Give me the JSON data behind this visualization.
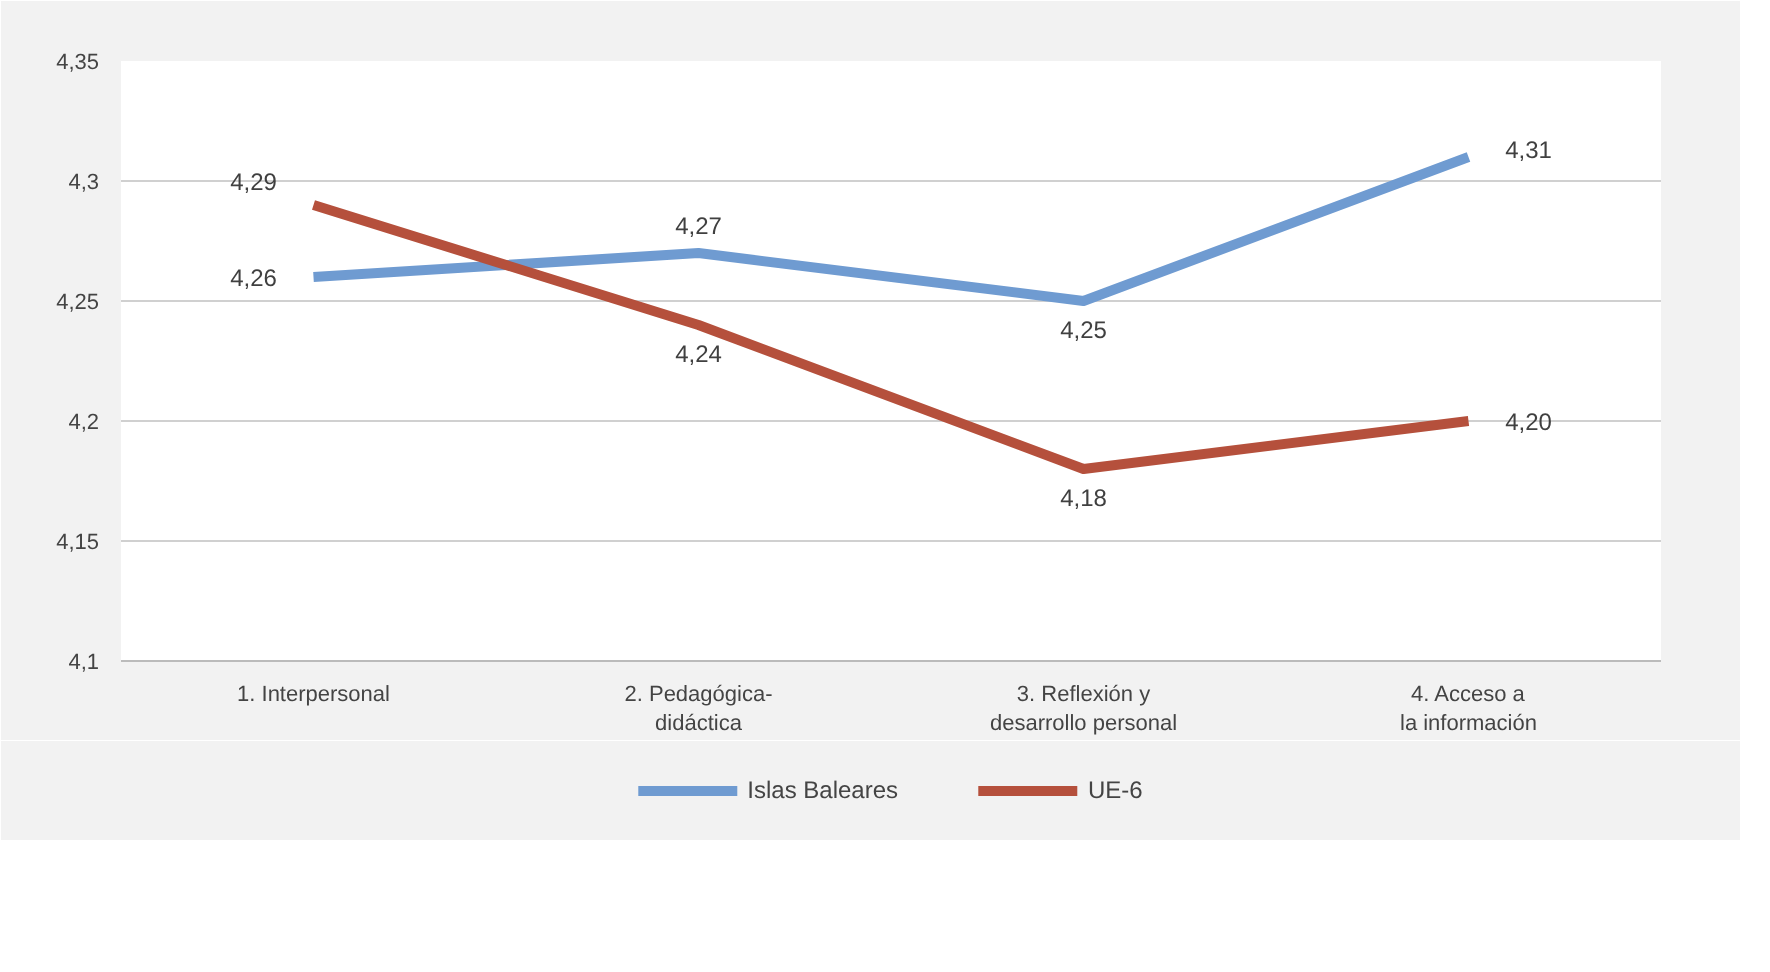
{
  "chart_data": {
    "type": "line",
    "categories": [
      "1. Interpersonal",
      "2. Pedagógica-\ndidáctica",
      "3. Reflexión y\ndesarrollo personal",
      "4. Acceso a\nla información"
    ],
    "series": [
      {
        "name": "Islas Baleares",
        "color": "#6f9bd1",
        "values": [
          4.26,
          4.27,
          4.25,
          4.31
        ],
        "value_labels": [
          "4,26",
          "4,27",
          "4,25",
          "4,31"
        ]
      },
      {
        "name": "UE-6",
        "color": "#b5503c",
        "values": [
          4.29,
          4.24,
          4.18,
          4.2
        ],
        "value_labels": [
          "4,29",
          "4,24",
          "4,18",
          "4,20"
        ]
      }
    ],
    "ylim": [
      4.1,
      4.35
    ],
    "yticks": [
      {
        "value": 4.1,
        "label": "4,1"
      },
      {
        "value": 4.15,
        "label": "4,15"
      },
      {
        "value": 4.2,
        "label": "4,2"
      },
      {
        "value": 4.25,
        "label": "4,25"
      },
      {
        "value": 4.3,
        "label": "4,3"
      },
      {
        "value": 4.35,
        "label": "4,35"
      }
    ],
    "grid": "y",
    "legend": "bottom",
    "marker": "none",
    "line_style": "solid"
  }
}
